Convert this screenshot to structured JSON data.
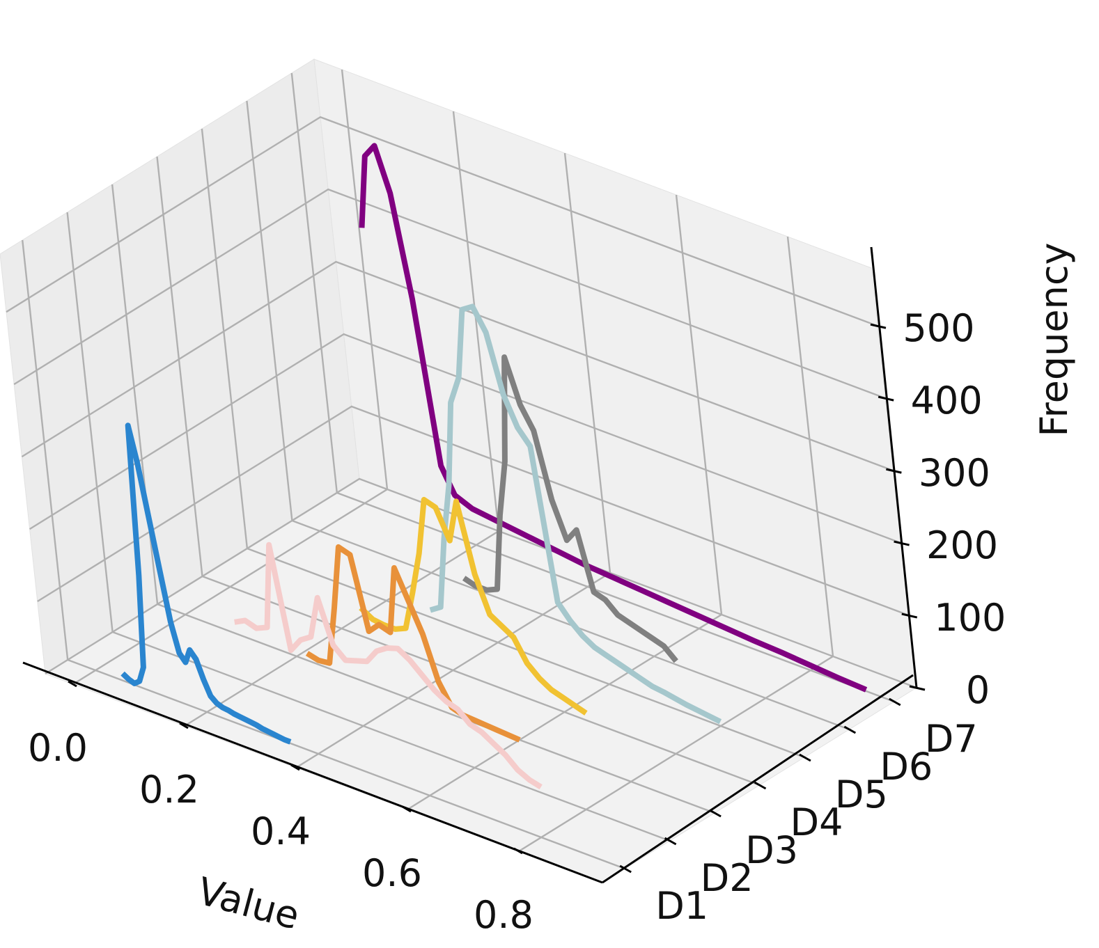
{
  "chart_data": {
    "type": "line",
    "xlabel": "Value",
    "ylabel": "",
    "zlabel": "Frequency",
    "x_ticks": [
      "0.0",
      "0.2",
      "0.4",
      "0.6",
      "0.8"
    ],
    "y_ticks": [
      "D1",
      "D2",
      "D3",
      "D4",
      "D5",
      "D6",
      "D7"
    ],
    "z_ticks": [
      "0",
      "100",
      "200",
      "300",
      "400",
      "500"
    ],
    "xlim": [
      -0.05,
      0.95
    ],
    "zlim": [
      0,
      580
    ],
    "grid": true,
    "series": [
      {
        "category": "D1",
        "color": "#2a85cf",
        "x": [
          0.05,
          0.06,
          0.07,
          0.08,
          0.09,
          0.1,
          0.11,
          0.12,
          0.13,
          0.14,
          0.15,
          0.16,
          0.17,
          0.18,
          0.19,
          0.2,
          0.21,
          0.22,
          0.23,
          0.24,
          0.25,
          0.26,
          0.27,
          0.28,
          0.29,
          0.3,
          0.31,
          0.32,
          0.33,
          0.34,
          0.35
        ],
        "values": [
          10,
          5,
          2,
          8,
          30,
          160,
          370,
          320,
          250,
          180,
          110,
          70,
          60,
          80,
          70,
          45,
          25,
          18,
          15,
          14,
          12,
          11,
          10,
          9,
          8,
          6,
          5,
          4,
          3,
          2,
          2
        ]
      },
      {
        "category": "D2",
        "color": "#f5cccb",
        "x": [
          0.18,
          0.2,
          0.22,
          0.24,
          0.26,
          0.28,
          0.3,
          0.32,
          0.34,
          0.36,
          0.38,
          0.4,
          0.42,
          0.44,
          0.46,
          0.48,
          0.5,
          0.52,
          0.54,
          0.56,
          0.58,
          0.6,
          0.62,
          0.64,
          0.66,
          0.68,
          0.7,
          0.72
        ],
        "values": [
          80,
          88,
          83,
          90,
          210,
          70,
          90,
          100,
          160,
          100,
          85,
          90,
          95,
          115,
          125,
          130,
          120,
          105,
          90,
          80,
          75,
          60,
          55,
          45,
          35,
          20,
          12,
          8
        ]
      },
      {
        "category": "D3",
        "color": "#e8913a",
        "x": [
          0.22,
          0.24,
          0.26,
          0.28,
          0.3,
          0.32,
          0.34,
          0.36,
          0.38,
          0.4,
          0.42,
          0.44,
          0.46,
          0.48,
          0.5,
          0.52,
          0.54,
          0.56,
          0.58,
          0.6
        ],
        "values": [
          10,
          6,
          8,
          90,
          180,
          175,
          75,
          90,
          85,
          180,
          140,
          100,
          40,
          10,
          5,
          4,
          3,
          2,
          1,
          0
        ]
      },
      {
        "category": "D4",
        "color": "#f1c232",
        "x": [
          0.24,
          0.26,
          0.28,
          0.3,
          0.32,
          0.34,
          0.36,
          0.38,
          0.4,
          0.42,
          0.44,
          0.46,
          0.48,
          0.5,
          0.52,
          0.54,
          0.56,
          0.58,
          0.6,
          0.62,
          0.64
        ],
        "values": [
          40,
          30,
          28,
          28,
          35,
          90,
          150,
          230,
          225,
          185,
          245,
          150,
          100,
          90,
          80,
          50,
          35,
          25,
          20,
          15,
          10
        ]
      },
      {
        "category": "D5",
        "color": "#a5c7cc",
        "x": [
          0.28,
          0.3,
          0.32,
          0.34,
          0.36,
          0.38,
          0.4,
          0.42,
          0.44,
          0.46,
          0.48,
          0.5,
          0.52,
          0.54,
          0.56,
          0.58,
          0.6,
          0.62,
          0.64,
          0.66,
          0.68,
          0.7,
          0.72,
          0.74,
          0.76,
          0.78,
          0.8
        ],
        "values": [
          10,
          20,
          120,
          200,
          320,
          360,
          460,
          470,
          440,
          360,
          320,
          300,
          90,
          70,
          55,
          45,
          40,
          35,
          30,
          25,
          20,
          18,
          15,
          12,
          10,
          8,
          6
        ]
      },
      {
        "category": "D6",
        "color": "#808080",
        "x": [
          0.26,
          0.28,
          0.3,
          0.32,
          0.34,
          0.36,
          0.38,
          0.4,
          0.42,
          0.44,
          0.46,
          0.48,
          0.5,
          0.52,
          0.54,
          0.56,
          0.58,
          0.6,
          0.62,
          0.64
        ],
        "values": [
          10,
          5,
          5,
          12,
          120,
          200,
          350,
          290,
          260,
          170,
          120,
          140,
          60,
          55,
          40,
          35,
          30,
          25,
          20,
          5
        ]
      },
      {
        "category": "D7",
        "color": "#800080",
        "x": [
          0.05,
          0.07,
          0.09,
          0.11,
          0.13,
          0.15,
          0.17,
          0.2,
          0.25,
          0.3,
          0.35,
          0.4,
          0.45,
          0.5,
          0.55,
          0.6,
          0.65,
          0.7,
          0.75,
          0.8,
          0.85,
          0.9
        ],
        "values": [
          395,
          500,
          520,
          460,
          320,
          95,
          60,
          50,
          45,
          40,
          35,
          30,
          27,
          24,
          21,
          18,
          15,
          12,
          10,
          7,
          4,
          2
        ]
      }
    ]
  }
}
